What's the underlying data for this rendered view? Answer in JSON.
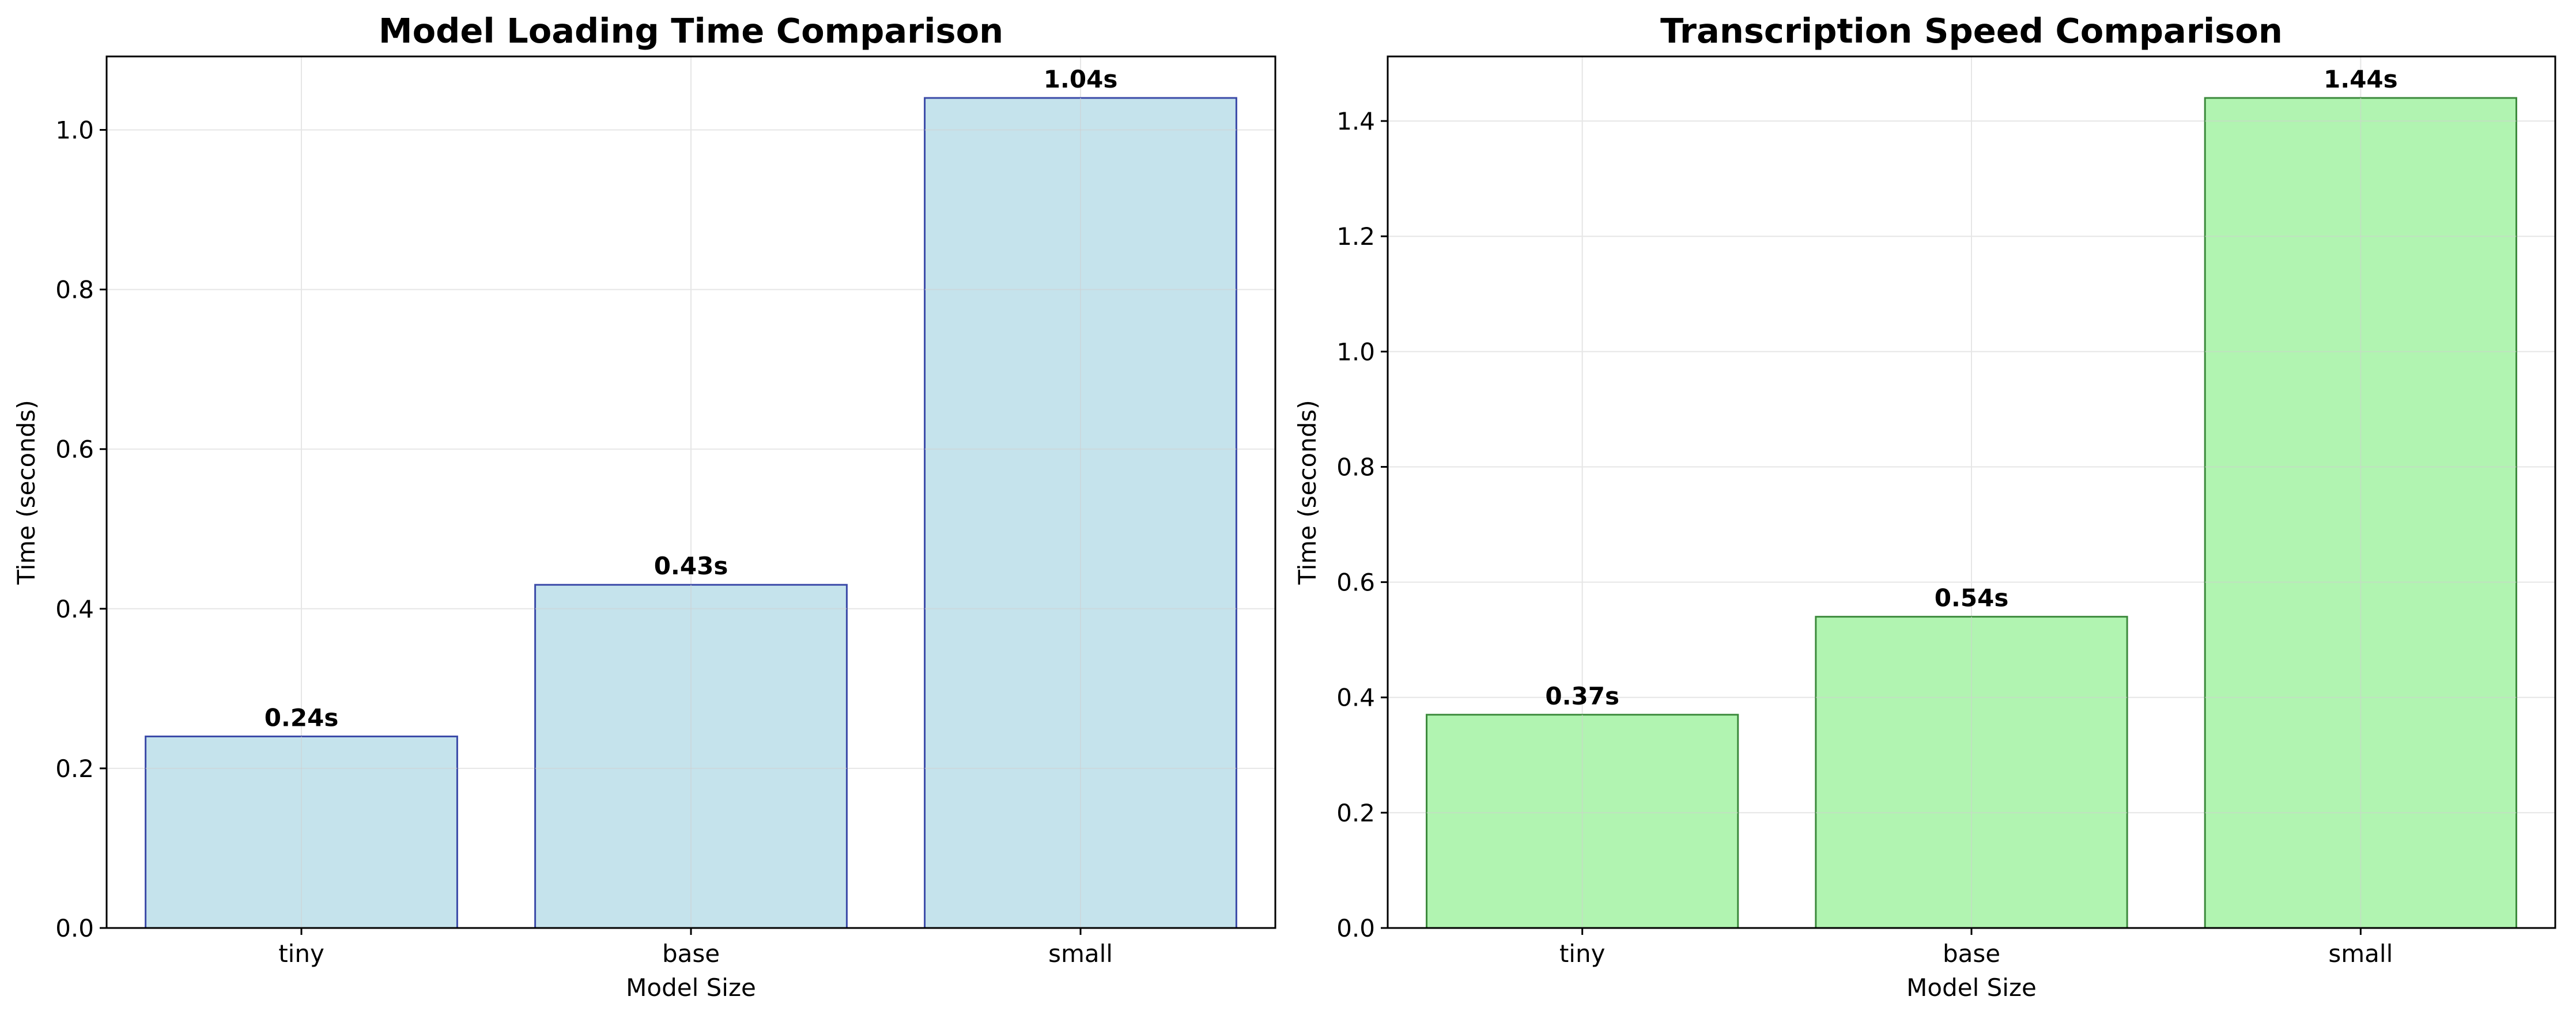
{
  "chart_data": [
    {
      "type": "bar",
      "title": "Model Loading Time Comparison",
      "xlabel": "Model Size",
      "ylabel": "Time (seconds)",
      "categories": [
        "tiny",
        "base",
        "small"
      ],
      "values": [
        0.24,
        0.43,
        1.04
      ],
      "data_labels": [
        "0.24s",
        "0.43s",
        "1.04s"
      ],
      "ylim": [
        0,
        1.092
      ],
      "yticks": [
        0.0,
        0.2,
        0.4,
        0.6,
        0.8,
        1.0
      ],
      "ytick_labels": [
        "0.0",
        "0.2",
        "0.4",
        "0.6",
        "0.8",
        "1.0"
      ],
      "grid": true,
      "bar_fill": "#c5e3ec",
      "bar_edge": "#3b4aa8"
    },
    {
      "type": "bar",
      "title": "Transcription Speed Comparison",
      "xlabel": "Model Size",
      "ylabel": "Time (seconds)",
      "categories": [
        "tiny",
        "base",
        "small"
      ],
      "values": [
        0.37,
        0.54,
        1.44
      ],
      "data_labels": [
        "0.37s",
        "0.54s",
        "1.44s"
      ],
      "ylim": [
        0,
        1.512
      ],
      "yticks": [
        0.0,
        0.2,
        0.4,
        0.6,
        0.8,
        1.0,
        1.2,
        1.4
      ],
      "ytick_labels": [
        "0.0",
        "0.2",
        "0.4",
        "0.6",
        "0.8",
        "1.0",
        "1.2",
        "1.4"
      ],
      "grid": true,
      "bar_fill": "#b1f4b1",
      "bar_edge": "#3c8a3c"
    }
  ]
}
